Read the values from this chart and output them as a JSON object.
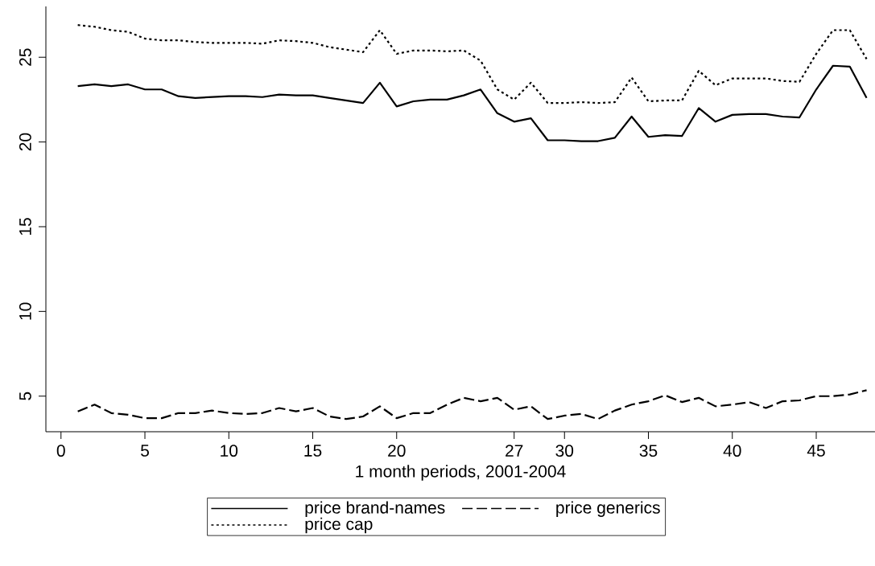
{
  "chart_data": {
    "type": "line",
    "xlabel": "1 month periods, 2001-2004",
    "x": [
      1,
      2,
      3,
      4,
      5,
      6,
      7,
      8,
      9,
      10,
      11,
      12,
      13,
      14,
      15,
      16,
      17,
      18,
      19,
      20,
      21,
      22,
      23,
      24,
      25,
      26,
      27,
      28,
      29,
      30,
      31,
      32,
      33,
      34,
      35,
      36,
      37,
      38,
      39,
      40,
      41,
      42,
      43,
      44,
      45,
      46,
      47,
      48
    ],
    "series": [
      {
        "name": "price brand-names",
        "color": "#000000",
        "line_style": "solid",
        "values": [
          23.3,
          23.4,
          23.3,
          23.4,
          23.1,
          23.1,
          22.7,
          22.6,
          22.65,
          22.7,
          22.7,
          22.65,
          22.8,
          22.75,
          22.75,
          22.6,
          22.45,
          22.3,
          23.5,
          22.1,
          22.4,
          22.5,
          22.5,
          22.75,
          23.1,
          21.7,
          21.2,
          21.4,
          20.1,
          20.1,
          20.05,
          20.05,
          20.25,
          21.5,
          20.3,
          20.4,
          20.35,
          22.0,
          21.2,
          21.6,
          21.65,
          21.65,
          21.5,
          21.45,
          23.1,
          24.5,
          24.45,
          22.6
        ]
      },
      {
        "name": "price generics",
        "color": "#000000",
        "line_style": "dashed",
        "values": [
          4.1,
          4.5,
          4.0,
          3.9,
          3.7,
          3.7,
          4.0,
          4.0,
          4.15,
          4.0,
          3.95,
          4.0,
          4.3,
          4.1,
          4.3,
          3.8,
          3.65,
          3.8,
          4.4,
          3.7,
          4.0,
          4.0,
          4.5,
          4.9,
          4.7,
          4.9,
          4.2,
          4.4,
          3.65,
          3.85,
          3.95,
          3.65,
          4.15,
          4.5,
          4.7,
          5.05,
          4.65,
          4.9,
          4.4,
          4.5,
          4.65,
          4.3,
          4.7,
          4.75,
          5.0,
          5.0,
          5.1,
          5.35
        ]
      },
      {
        "name": "price cap",
        "color": "#000000",
        "line_style": "dotted",
        "values": [
          26.9,
          26.8,
          26.6,
          26.5,
          26.1,
          26.0,
          26.0,
          25.9,
          25.85,
          25.85,
          25.85,
          25.8,
          26.0,
          25.95,
          25.85,
          25.6,
          25.45,
          25.3,
          26.6,
          25.2,
          25.4,
          25.4,
          25.35,
          25.4,
          24.8,
          23.1,
          22.5,
          23.5,
          22.3,
          22.3,
          22.35,
          22.3,
          22.35,
          23.8,
          22.4,
          22.45,
          22.45,
          24.2,
          23.35,
          23.75,
          23.75,
          23.75,
          23.6,
          23.55,
          25.2,
          26.6,
          26.6,
          24.9
        ]
      }
    ],
    "xlim": [
      -0.9,
      48.5
    ],
    "ylim": [
      2.9,
      28
    ],
    "xticks": [
      0,
      5,
      10,
      15,
      20,
      27,
      30,
      35,
      40,
      45
    ],
    "yticks": [
      5,
      10,
      15,
      20,
      25
    ],
    "grid": false,
    "legend": "bottom",
    "marker": "none"
  }
}
